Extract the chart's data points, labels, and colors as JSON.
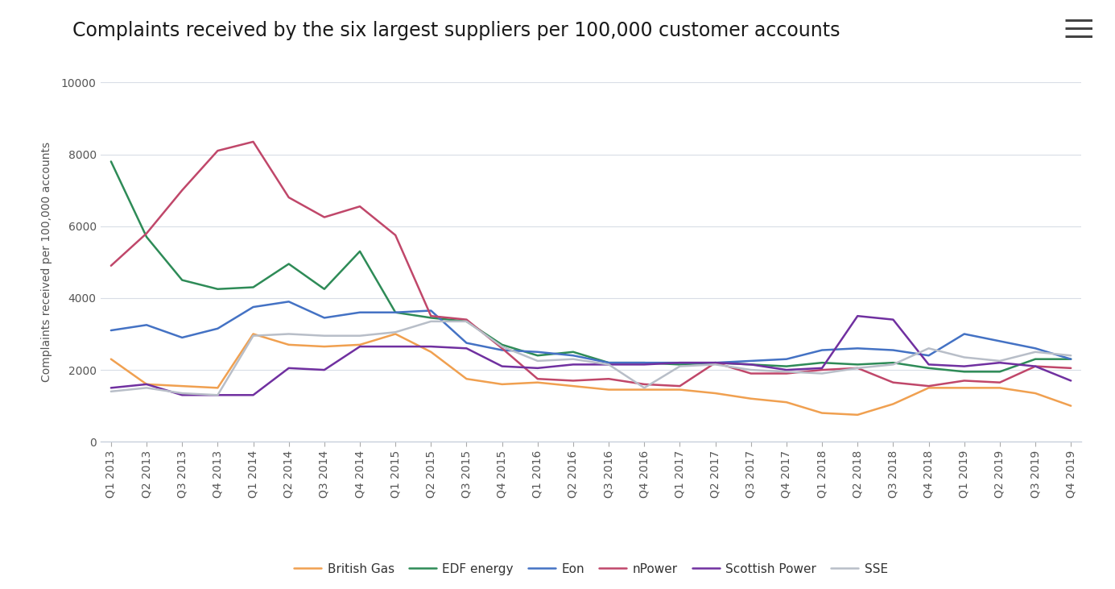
{
  "title": "Complaints received by the six largest suppliers per 100,000 customer accounts",
  "ylabel": "Complaints received per 100,000 accounts",
  "xlabels": [
    "Q1 2013",
    "Q2 2013",
    "Q3 2013",
    "Q4 2013",
    "Q1 2014",
    "Q2 2014",
    "Q3 2014",
    "Q4 2014",
    "Q1 2015",
    "Q2 2015",
    "Q3 2015",
    "Q4 2015",
    "Q1 2016",
    "Q2 2016",
    "Q3 2016",
    "Q4 2016",
    "Q1 2017",
    "Q2 2017",
    "Q3 2017",
    "Q4 2017",
    "Q1 2018",
    "Q2 2018",
    "Q3 2018",
    "Q4 2018",
    "Q1 2019",
    "Q2 2019",
    "Q3 2019",
    "Q4 2019"
  ],
  "series": {
    "British Gas": {
      "color": "#f0a050",
      "data": [
        2300,
        1600,
        1550,
        1500,
        3000,
        2700,
        2650,
        2700,
        3000,
        2500,
        1750,
        1600,
        1650,
        1550,
        1450,
        1450,
        1450,
        1350,
        1200,
        1100,
        800,
        750,
        1050,
        1500,
        1500,
        1500,
        1350,
        1000
      ]
    },
    "EDF energy": {
      "color": "#2e8b57",
      "data": [
        7800,
        5700,
        4500,
        4250,
        4300,
        4950,
        4250,
        5300,
        3600,
        3450,
        3350,
        2700,
        2400,
        2500,
        2200,
        2200,
        2150,
        2200,
        2150,
        2100,
        2200,
        2150,
        2200,
        2050,
        1950,
        1950,
        2300,
        2300
      ]
    },
    "Eon": {
      "color": "#4472c4",
      "data": [
        3100,
        3250,
        2900,
        3150,
        3750,
        3900,
        3450,
        3600,
        3600,
        3650,
        2750,
        2550,
        2500,
        2400,
        2200,
        2200,
        2200,
        2200,
        2250,
        2300,
        2550,
        2600,
        2550,
        2400,
        3000,
        2800,
        2600,
        2300
      ]
    },
    "nPower": {
      "color": "#c0476a",
      "data": [
        4900,
        5800,
        7000,
        8100,
        8350,
        6800,
        6250,
        6550,
        5750,
        3500,
        3400,
        2600,
        1750,
        1700,
        1750,
        1600,
        1550,
        2200,
        1900,
        1900,
        2000,
        2050,
        1650,
        1550,
        1700,
        1650,
        2100,
        2050
      ]
    },
    "Scottish Power": {
      "color": "#7030a0",
      "data": [
        1500,
        1600,
        1300,
        1300,
        1300,
        2050,
        2000,
        2650,
        2650,
        2650,
        2600,
        2100,
        2050,
        2150,
        2150,
        2150,
        2200,
        2200,
        2150,
        2000,
        2050,
        3500,
        3400,
        2150,
        2100,
        2200,
        2100,
        1700
      ]
    },
    "SSE": {
      "color": "#b8bec8",
      "data": [
        1400,
        1500,
        1350,
        1300,
        2950,
        3000,
        2950,
        2950,
        3050,
        3350,
        3350,
        2650,
        2250,
        2300,
        2150,
        1500,
        2100,
        2150,
        2000,
        1950,
        1900,
        2050,
        2150,
        2600,
        2350,
        2250,
        2500,
        2400
      ]
    }
  },
  "ylim": [
    0,
    10000
  ],
  "yticks": [
    0,
    2000,
    4000,
    6000,
    8000,
    10000
  ],
  "background_color": "#ffffff",
  "grid_color": "#d8dde6",
  "title_fontsize": 17,
  "tick_fontsize": 10,
  "legend_fontsize": 11,
  "axis_label_color": "#555555",
  "tick_label_color": "#555555",
  "menu_color": "#555555"
}
